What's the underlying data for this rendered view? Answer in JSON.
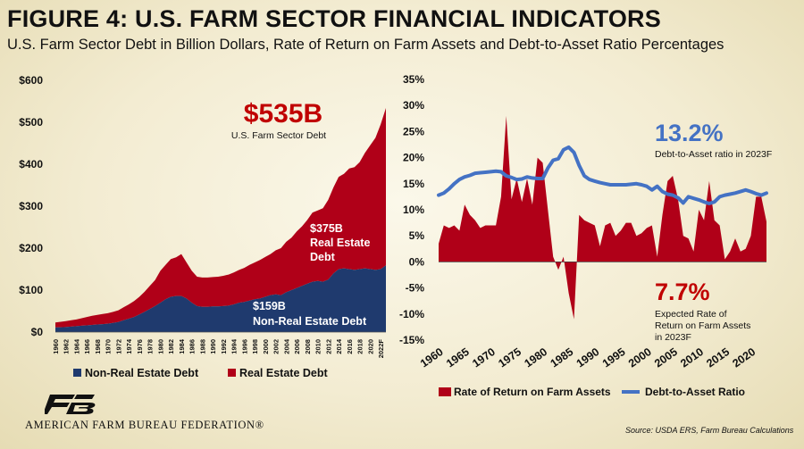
{
  "title": "FIGURE 4: U.S. FARM SECTOR FINANCIAL INDICATORS",
  "subtitle": "U.S. Farm Sector Debt in Billion Dollars, Rate of Return on Farm Assets and Debt-to-Asset Ratio Percentages",
  "source": "Source: USDA ERS, Farm Bureau Calculations",
  "logo_text": "AMERICAN FARM BUREAU FEDERATION®",
  "colors": {
    "dark_red": "#b00018",
    "navy": "#1f3a6e",
    "blue": "#4472c4",
    "title_red": "#c00000"
  },
  "chart_data": [
    {
      "type": "area",
      "stacked": true,
      "x": [
        "1960",
        "1961",
        "1962",
        "1963",
        "1964",
        "1965",
        "1966",
        "1967",
        "1968",
        "1969",
        "1970",
        "1971",
        "1972",
        "1973",
        "1974",
        "1975",
        "1976",
        "1977",
        "1978",
        "1979",
        "1980",
        "1981",
        "1982",
        "1983",
        "1984",
        "1985",
        "1986",
        "1987",
        "1988",
        "1989",
        "1990",
        "1991",
        "1992",
        "1993",
        "1994",
        "1995",
        "1996",
        "1997",
        "1998",
        "1999",
        "2000",
        "2001",
        "2002",
        "2003",
        "2004",
        "2005",
        "2006",
        "2007",
        "2008",
        "2009",
        "2010",
        "2011",
        "2012",
        "2013",
        "2014",
        "2015",
        "2016",
        "2017",
        "2018",
        "2019",
        "2020",
        "2021",
        "2022",
        "2023F"
      ],
      "xticks": [
        "1960",
        "1962",
        "1964",
        "1966",
        "1968",
        "1970",
        "1972",
        "1974",
        "1976",
        "1978",
        "1980",
        "1982",
        "1984",
        "1986",
        "1988",
        "1990",
        "1992",
        "1994",
        "1996",
        "1998",
        "2000",
        "2002",
        "2004",
        "2006",
        "2008",
        "2010",
        "2012",
        "2014",
        "2016",
        "2018",
        "2020",
        "2022F"
      ],
      "series": [
        {
          "name": "Non-Real Estate Debt",
          "color": "#1f3a6e",
          "values": [
            11,
            11.5,
            12,
            13,
            14,
            15,
            16,
            17,
            18,
            19,
            20,
            22,
            24,
            28,
            32,
            36,
            42,
            48,
            55,
            62,
            70,
            78,
            84,
            86,
            86,
            80,
            70,
            62,
            60,
            60,
            61,
            61,
            62,
            63,
            66,
            70,
            72,
            75,
            78,
            80,
            84,
            88,
            90,
            88,
            95,
            100,
            105,
            110,
            115,
            120,
            122,
            120,
            125,
            140,
            150,
            152,
            150,
            148,
            150,
            152,
            150,
            148,
            150,
            159
          ]
        },
        {
          "name": "Real Estate Debt",
          "color": "#b00018",
          "values": [
            12,
            13,
            14,
            15,
            16,
            18,
            20,
            22,
            23,
            24,
            25,
            26,
            28,
            31,
            34,
            38,
            42,
            48,
            55,
            62,
            76,
            82,
            90,
            92,
            100,
            86,
            76,
            70,
            70,
            70,
            70,
            71,
            72,
            74,
            76,
            78,
            81,
            85,
            88,
            92,
            95,
            98,
            105,
            112,
            120,
            125,
            135,
            142,
            152,
            165,
            168,
            175,
            190,
            205,
            220,
            225,
            240,
            245,
            255,
            275,
            295,
            315,
            345,
            375
          ]
        }
      ],
      "ylim": [
        0,
        600
      ],
      "yticks": [
        "$0",
        "$100",
        "$200",
        "$300",
        "$400",
        "$500",
        "$600"
      ],
      "annotations": {
        "total_value": "$535B",
        "total_label": "U.S. Farm Sector Debt",
        "real_estate_value": "$375B",
        "real_estate_line1": "Real Estate",
        "real_estate_line2": "Debt",
        "non_real_estate_value": "$159B",
        "non_real_estate_label": "Non-Real Estate Debt"
      }
    },
    {
      "type": "bar+line",
      "x": [
        "1960",
        "1961",
        "1962",
        "1963",
        "1964",
        "1965",
        "1966",
        "1967",
        "1968",
        "1969",
        "1970",
        "1971",
        "1972",
        "1973",
        "1974",
        "1975",
        "1976",
        "1977",
        "1978",
        "1979",
        "1980",
        "1981",
        "1982",
        "1983",
        "1984",
        "1985",
        "1986",
        "1987",
        "1988",
        "1989",
        "1990",
        "1991",
        "1992",
        "1993",
        "1994",
        "1995",
        "1996",
        "1997",
        "1998",
        "1999",
        "2000",
        "2001",
        "2002",
        "2003",
        "2004",
        "2005",
        "2006",
        "2007",
        "2008",
        "2009",
        "2010",
        "2011",
        "2012",
        "2013",
        "2014",
        "2015",
        "2016",
        "2017",
        "2018",
        "2019",
        "2020",
        "2021",
        "2022",
        "2023F"
      ],
      "xticks": [
        "1960",
        "1965",
        "1970",
        "1975",
        "1980",
        "1985",
        "1990",
        "1995",
        "2000",
        "2005",
        "2010",
        "2015",
        "2020"
      ],
      "series": [
        {
          "name": "Rate of Return on Farm Assets",
          "type": "area",
          "color": "#b00018",
          "values": [
            3.5,
            7,
            6.5,
            7,
            6,
            11,
            9,
            8,
            6.5,
            7,
            7,
            7,
            12.5,
            28,
            12,
            16,
            11.5,
            16,
            11,
            20,
            19,
            10,
            1,
            -1.5,
            1,
            -6,
            -11,
            9,
            8,
            7.5,
            7,
            3,
            7,
            7.5,
            5,
            6,
            7.5,
            7.5,
            5,
            5.5,
            6.5,
            7,
            1,
            9,
            15.5,
            16.5,
            12,
            5,
            4.5,
            2,
            10,
            8,
            15.5,
            8,
            7,
            0.5,
            2,
            4.5,
            2,
            2.5,
            5,
            12.5,
            12.5,
            7.7
          ]
        },
        {
          "name": "Debt-to-Asset Ratio",
          "type": "line",
          "color": "#4472c4",
          "values": [
            12.8,
            13.2,
            14,
            15,
            15.8,
            16.3,
            16.6,
            17,
            17.1,
            17.2,
            17.3,
            17.4,
            17.3,
            16.5,
            16.2,
            15.8,
            15.9,
            16.3,
            16.1,
            16,
            16,
            18,
            19.5,
            19.8,
            21.5,
            22,
            21,
            18.5,
            16.5,
            15.8,
            15.5,
            15.2,
            15,
            14.8,
            14.8,
            14.8,
            14.8,
            14.9,
            15,
            14.8,
            14.5,
            13.8,
            14.5,
            13.5,
            13,
            12.8,
            12.3,
            11.3,
            12.5,
            12.2,
            11.9,
            11.5,
            11.2,
            11.5,
            12.5,
            12.8,
            13,
            13.2,
            13.5,
            13.8,
            13.5,
            13.1,
            12.8,
            13.2
          ]
        }
      ],
      "ylim": [
        -15,
        35
      ],
      "yticks": [
        "-15%",
        "-10%",
        "-5%",
        "0%",
        "5%",
        "10%",
        "15%",
        "20%",
        "25%",
        "30%",
        "35%"
      ],
      "annotations": {
        "ratio_value": "13.2%",
        "ratio_label": "Debt-to-Asset ratio in 2023F",
        "return_value": "7.7%",
        "return_line1": "Expected Rate of",
        "return_line2": "Return on Farm Assets",
        "return_line3": "in 2023F"
      }
    }
  ]
}
